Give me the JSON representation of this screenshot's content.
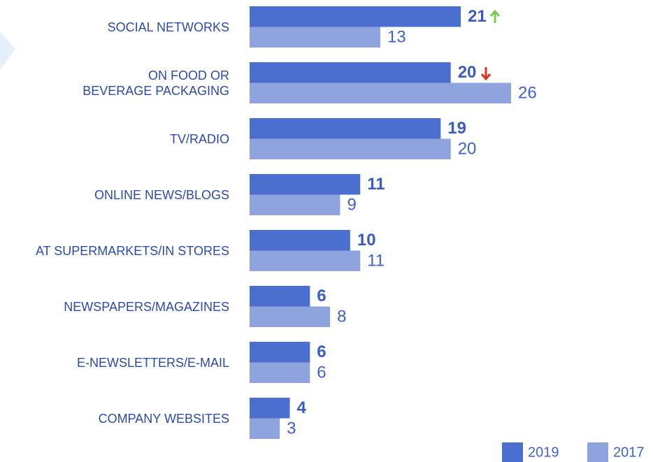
{
  "chart_data": {
    "type": "bar",
    "orientation": "horizontal",
    "categories": [
      "SOCIAL NETWORKS",
      "ON FOOD OR\nBEVERAGE PACKAGING",
      "TV/RADIO",
      "ONLINE NEWS/BLOGS",
      "AT SUPERMARKETS/IN STORES",
      "NEWSPAPERS/MAGAZINES",
      "E-NEWSLETTERS/E-MAIL",
      "COMPANY WEBSITES"
    ],
    "series": [
      {
        "name": "2019",
        "color": "#4a6fcf",
        "values": [
          21,
          20,
          19,
          11,
          10,
          6,
          6,
          4
        ]
      },
      {
        "name": "2017",
        "color": "#8fa3de",
        "values": [
          13,
          26,
          20,
          9,
          11,
          8,
          6,
          3
        ]
      }
    ],
    "xlim": [
      0,
      26
    ]
  }
}
